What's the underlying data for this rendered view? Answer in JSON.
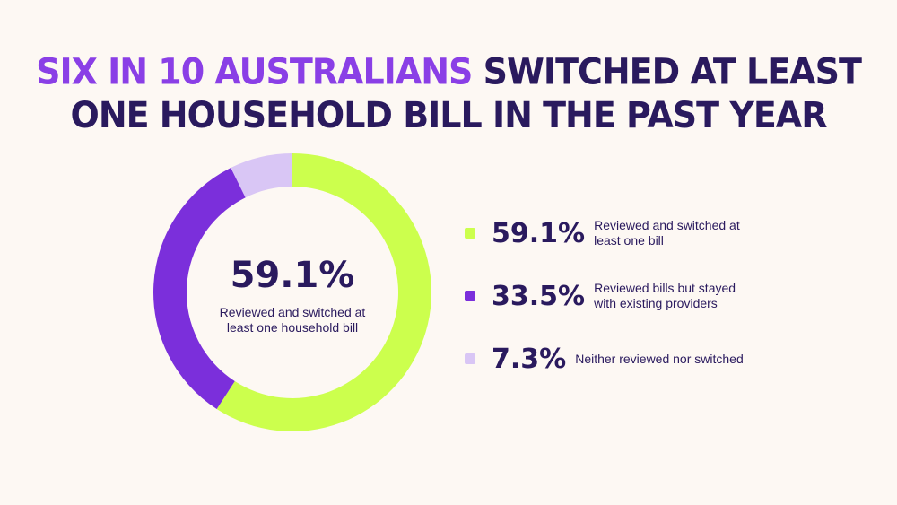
{
  "title": {
    "highlight": "SIX IN 10 AUSTRALIANS",
    "rest": "SWITCHED AT LEAST ONE HOUSEHOLD BILL IN THE PAST YEAR"
  },
  "center": {
    "value": "59.1%",
    "label": "Reviewed and switched at least one household bill"
  },
  "legend": [
    {
      "value": "59.1%",
      "label": "Reviewed and switched at least one bill"
    },
    {
      "value": "33.5%",
      "label": "Reviewed bills but stayed with existing providers"
    },
    {
      "value": "7.3%",
      "label": "Neither reviewed nor switched"
    }
  ],
  "chart_data": {
    "type": "pie",
    "donut": true,
    "title": "SIX IN 10 AUSTRALIANS SWITCHED AT LEAST ONE HOUSEHOLD BILL IN THE PAST YEAR",
    "categories": [
      "Reviewed and switched at least one bill",
      "Reviewed bills but stayed with existing providers",
      "Neither reviewed nor switched"
    ],
    "values": [
      59.1,
      33.5,
      7.3
    ],
    "colors": [
      "#CCFF4D",
      "#7B2FDB",
      "#D9C6F5"
    ],
    "legend": "right"
  }
}
